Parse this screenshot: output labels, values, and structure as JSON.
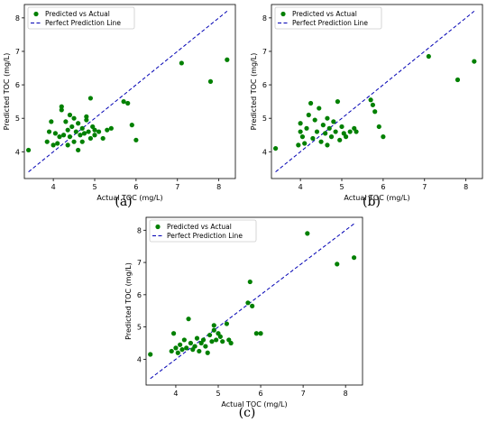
{
  "chart_data": [
    {
      "type": "scatter",
      "caption": "(a)",
      "xlabel": "Actual TOC (mg/L)",
      "ylabel": "Predicted TOC (mg/L)",
      "xlim": [
        3.3,
        8.4
      ],
      "ylim": [
        3.2,
        8.4
      ],
      "xticks": [
        4,
        5,
        6,
        7,
        8
      ],
      "yticks": [
        4,
        5,
        6,
        7,
        8
      ],
      "legend": {
        "location": "top-left",
        "entries": [
          "Predicted vs Actual",
          "Perfect Prediction Line"
        ]
      },
      "colors": {
        "points": "#008000",
        "line": "#0000b4"
      },
      "series": [
        {
          "name": "Predicted vs Actual",
          "points": [
            [
              3.4,
              4.05
            ],
            [
              3.85,
              4.3
            ],
            [
              3.9,
              4.6
            ],
            [
              3.95,
              4.9
            ],
            [
              4.0,
              4.2
            ],
            [
              4.05,
              4.55
            ],
            [
              4.1,
              4.25
            ],
            [
              4.15,
              4.45
            ],
            [
              4.2,
              5.35
            ],
            [
              4.2,
              5.25
            ],
            [
              4.25,
              4.5
            ],
            [
              4.3,
              4.9
            ],
            [
              4.35,
              4.2
            ],
            [
              4.35,
              4.65
            ],
            [
              4.4,
              5.1
            ],
            [
              4.4,
              4.45
            ],
            [
              4.45,
              4.75
            ],
            [
              4.5,
              5.0
            ],
            [
              4.5,
              4.3
            ],
            [
              4.55,
              4.6
            ],
            [
              4.6,
              4.85
            ],
            [
              4.6,
              4.05
            ],
            [
              4.65,
              4.5
            ],
            [
              4.7,
              4.7
            ],
            [
              4.7,
              4.3
            ],
            [
              4.75,
              4.55
            ],
            [
              4.8,
              4.95
            ],
            [
              4.8,
              5.05
            ],
            [
              4.85,
              4.6
            ],
            [
              4.9,
              5.6
            ],
            [
              4.9,
              4.4
            ],
            [
              4.95,
              4.75
            ],
            [
              5.0,
              4.5
            ],
            [
              5.0,
              4.65
            ],
            [
              5.1,
              4.6
            ],
            [
              5.2,
              4.4
            ],
            [
              5.3,
              4.65
            ],
            [
              5.4,
              4.7
            ],
            [
              5.7,
              5.5
            ],
            [
              5.8,
              5.45
            ],
            [
              5.9,
              4.8
            ],
            [
              6.0,
              4.35
            ],
            [
              7.1,
              6.65
            ],
            [
              7.8,
              6.1
            ],
            [
              8.2,
              6.75
            ]
          ]
        },
        {
          "name": "Perfect Prediction Line",
          "line": [
            [
              3.4,
              3.4
            ],
            [
              8.2,
              8.2
            ]
          ]
        }
      ]
    },
    {
      "type": "scatter",
      "caption": "(b)",
      "xlabel": "Actual TOC (mg/L)",
      "ylabel": "Predicted TOC (mg/L)",
      "xlim": [
        3.3,
        8.4
      ],
      "ylim": [
        3.2,
        8.4
      ],
      "xticks": [
        4,
        5,
        6,
        7,
        8
      ],
      "yticks": [
        4,
        5,
        6,
        7,
        8
      ],
      "legend": {
        "location": "top-left",
        "entries": [
          "Predicted vs Actual",
          "Perfect Prediction Line"
        ]
      },
      "colors": {
        "points": "#008000",
        "line": "#0000b4"
      },
      "series": [
        {
          "name": "Predicted vs Actual",
          "points": [
            [
              3.4,
              4.1
            ],
            [
              3.95,
              4.2
            ],
            [
              4.0,
              4.6
            ],
            [
              4.0,
              4.85
            ],
            [
              4.05,
              4.45
            ],
            [
              4.1,
              4.25
            ],
            [
              4.15,
              4.7
            ],
            [
              4.2,
              5.1
            ],
            [
              4.25,
              5.45
            ],
            [
              4.3,
              4.4
            ],
            [
              4.35,
              4.95
            ],
            [
              4.4,
              4.6
            ],
            [
              4.45,
              5.3
            ],
            [
              4.5,
              4.3
            ],
            [
              4.55,
              4.8
            ],
            [
              4.6,
              4.55
            ],
            [
              4.65,
              5.0
            ],
            [
              4.65,
              4.2
            ],
            [
              4.7,
              4.7
            ],
            [
              4.75,
              4.45
            ],
            [
              4.8,
              4.9
            ],
            [
              4.85,
              4.6
            ],
            [
              4.9,
              5.5
            ],
            [
              4.95,
              4.35
            ],
            [
              5.0,
              4.75
            ],
            [
              5.05,
              4.55
            ],
            [
              5.1,
              4.45
            ],
            [
              5.2,
              4.6
            ],
            [
              5.3,
              4.7
            ],
            [
              5.35,
              4.6
            ],
            [
              5.7,
              5.55
            ],
            [
              5.75,
              5.4
            ],
            [
              5.8,
              5.2
            ],
            [
              5.9,
              4.75
            ],
            [
              6.0,
              4.45
            ],
            [
              7.1,
              6.85
            ],
            [
              7.8,
              6.15
            ],
            [
              8.2,
              6.7
            ]
          ]
        },
        {
          "name": "Perfect Prediction Line",
          "line": [
            [
              3.4,
              3.4
            ],
            [
              8.2,
              8.2
            ]
          ]
        }
      ]
    },
    {
      "type": "scatter",
      "caption": "(c)",
      "xlabel": "Actual TOC (mg/L)",
      "ylabel": "Predicted TOC (mg/L)",
      "xlim": [
        3.3,
        8.4
      ],
      "ylim": [
        3.2,
        8.4
      ],
      "xticks": [
        4,
        5,
        6,
        7,
        8
      ],
      "yticks": [
        4,
        5,
        6,
        7,
        8
      ],
      "legend": {
        "location": "top-left",
        "entries": [
          "Predicted vs Actual",
          "Perfect Prediction Line"
        ]
      },
      "colors": {
        "points": "#008000",
        "line": "#0000b4"
      },
      "series": [
        {
          "name": "Predicted vs Actual",
          "points": [
            [
              3.4,
              4.15
            ],
            [
              3.9,
              4.25
            ],
            [
              3.95,
              4.8
            ],
            [
              4.0,
              4.35
            ],
            [
              4.05,
              4.2
            ],
            [
              4.1,
              4.45
            ],
            [
              4.15,
              4.3
            ],
            [
              4.2,
              4.6
            ],
            [
              4.25,
              4.35
            ],
            [
              4.3,
              5.25
            ],
            [
              4.35,
              4.5
            ],
            [
              4.4,
              4.3
            ],
            [
              4.45,
              4.4
            ],
            [
              4.5,
              4.65
            ],
            [
              4.55,
              4.25
            ],
            [
              4.6,
              4.5
            ],
            [
              4.65,
              4.6
            ],
            [
              4.7,
              4.4
            ],
            [
              4.75,
              4.2
            ],
            [
              4.8,
              4.75
            ],
            [
              4.85,
              4.55
            ],
            [
              4.9,
              5.05
            ],
            [
              4.9,
              4.9
            ],
            [
              4.95,
              4.6
            ],
            [
              5.0,
              4.8
            ],
            [
              5.05,
              4.7
            ],
            [
              5.1,
              4.55
            ],
            [
              5.2,
              5.1
            ],
            [
              5.25,
              4.6
            ],
            [
              5.3,
              4.5
            ],
            [
              5.7,
              5.75
            ],
            [
              5.75,
              6.4
            ],
            [
              5.8,
              5.65
            ],
            [
              5.9,
              4.8
            ],
            [
              6.0,
              4.8
            ],
            [
              7.1,
              7.9
            ],
            [
              7.8,
              6.95
            ],
            [
              8.2,
              7.15
            ]
          ]
        },
        {
          "name": "Perfect Prediction Line",
          "line": [
            [
              3.4,
              3.4
            ],
            [
              8.2,
              8.2
            ]
          ]
        }
      ]
    }
  ]
}
